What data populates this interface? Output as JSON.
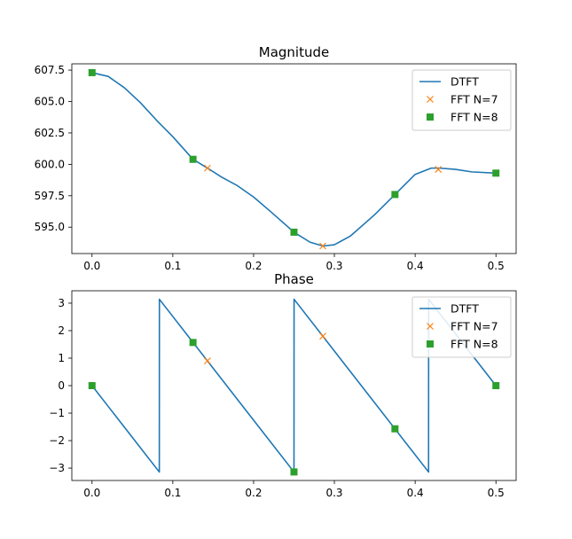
{
  "colors": {
    "dtft": "#1f77b4",
    "fft7": "#ff7f0e",
    "fft8": "#2ca02c"
  },
  "chart_data": [
    {
      "type": "line",
      "title": "Magnitude",
      "xlabel": "",
      "ylabel": "",
      "xlim": [
        -0.025,
        0.525
      ],
      "ylim": [
        592.9,
        608.0
      ],
      "xticks": [
        0.0,
        0.1,
        0.2,
        0.3,
        0.4,
        0.5
      ],
      "xtick_labels": [
        "0.0",
        "0.1",
        "0.2",
        "0.3",
        "0.4",
        "0.5"
      ],
      "yticks": [
        595.0,
        597.5,
        600.0,
        602.5,
        605.0,
        607.5
      ],
      "ytick_labels": [
        "595.0",
        "597.5",
        "600.0",
        "602.5",
        "605.0",
        "607.5"
      ],
      "legend_position": "top-right",
      "series": [
        {
          "name": "DTFT",
          "marker": "line",
          "x": [
            0,
            0.02,
            0.04,
            0.06,
            0.08,
            0.1,
            0.125,
            0.143,
            0.16,
            0.18,
            0.2,
            0.22,
            0.25,
            0.27,
            0.286,
            0.3,
            0.32,
            0.35,
            0.375,
            0.4,
            0.42,
            0.43,
            0.45,
            0.47,
            0.5
          ],
          "y": [
            607.3,
            607.0,
            606.1,
            604.9,
            603.5,
            602.2,
            600.4,
            599.7,
            599.0,
            598.3,
            597.4,
            596.3,
            594.6,
            593.8,
            593.5,
            593.6,
            594.3,
            596.0,
            597.6,
            599.2,
            599.7,
            599.7,
            599.6,
            599.4,
            599.3
          ]
        },
        {
          "name": "FFT N=7",
          "marker": "x",
          "x": [
            0.0,
            0.1429,
            0.2857,
            0.4286
          ],
          "y": [
            607.3,
            599.7,
            593.5,
            599.6
          ]
        },
        {
          "name": "FFT N=8",
          "marker": "square",
          "x": [
            0.0,
            0.125,
            0.25,
            0.375,
            0.5
          ],
          "y": [
            607.3,
            600.4,
            594.6,
            597.6,
            599.3
          ]
        }
      ]
    },
    {
      "type": "line",
      "title": "Phase",
      "xlabel": "",
      "ylabel": "",
      "xlim": [
        -0.025,
        0.525
      ],
      "ylim": [
        -3.45,
        3.45
      ],
      "xticks": [
        0.0,
        0.1,
        0.2,
        0.3,
        0.4,
        0.5
      ],
      "xtick_labels": [
        "0.0",
        "0.1",
        "0.2",
        "0.3",
        "0.4",
        "0.5"
      ],
      "yticks": [
        -3,
        -2,
        -1,
        0,
        1,
        2,
        3
      ],
      "ytick_labels": [
        "−3",
        "−2",
        "−1",
        "0",
        "1",
        "2",
        "3"
      ],
      "legend_position": "top-right",
      "series": [
        {
          "name": "DTFT",
          "marker": "line",
          "x": [
            0,
            0.0833,
            0.0834,
            0.25,
            0.2501,
            0.4166,
            0.4167,
            0.5
          ],
          "y": [
            0,
            -3.1416,
            3.1416,
            -3.1416,
            3.1416,
            -3.1416,
            3.1416,
            0
          ]
        },
        {
          "name": "FFT N=7",
          "marker": "x",
          "x": [
            0.0,
            0.1429,
            0.2857
          ],
          "y": [
            0.0,
            0.9,
            1.8
          ]
        },
        {
          "name": "FFT N=8",
          "marker": "square",
          "x": [
            0.0,
            0.125,
            0.25,
            0.375,
            0.5
          ],
          "y": [
            0.0,
            1.57,
            -3.14,
            -1.57,
            0.0
          ]
        }
      ]
    }
  ]
}
